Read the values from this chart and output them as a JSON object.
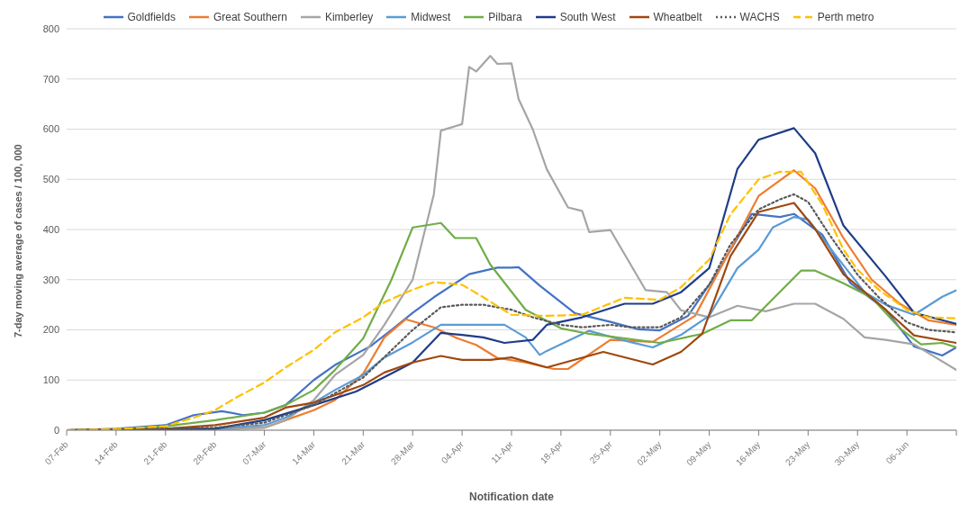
{
  "chart_data": {
    "type": "line",
    "xlabel": "Notification date",
    "ylabel": "7-day moving average of cases / 100, 000",
    "legend": "top",
    "grid": "y",
    "marker": "none",
    "xlim": [
      "--02-07",
      "--06-13"
    ],
    "ylim": [
      0,
      800
    ],
    "yticks": [
      0,
      100,
      200,
      300,
      400,
      500,
      600,
      700,
      800
    ],
    "xticks": [
      {
        "value": "--02-07",
        "label": "07-Feb"
      },
      {
        "value": "--02-14",
        "label": "14-Feb"
      },
      {
        "value": "--02-21",
        "label": "21-Feb"
      },
      {
        "value": "--02-28",
        "label": "28-Feb"
      },
      {
        "value": "--03-07",
        "label": "07-Mar"
      },
      {
        "value": "--03-14",
        "label": "14-Mar"
      },
      {
        "value": "--03-21",
        "label": "21-Mar"
      },
      {
        "value": "--03-28",
        "label": "28-Mar"
      },
      {
        "value": "--04-04",
        "label": "04-Apr"
      },
      {
        "value": "--04-11",
        "label": "11-Apr"
      },
      {
        "value": "--04-18",
        "label": "18-Apr"
      },
      {
        "value": "--04-25",
        "label": "25-Apr"
      },
      {
        "value": "--05-02",
        "label": "02-May"
      },
      {
        "value": "--05-09",
        "label": "09-May"
      },
      {
        "value": "--05-16",
        "label": "16-May"
      },
      {
        "value": "--05-23",
        "label": "23-May"
      },
      {
        "value": "--05-30",
        "label": "30-May"
      },
      {
        "value": "--06-06",
        "label": "06-Jun"
      },
      {
        "value": "--06-13",
        "label": null
      }
    ],
    "series": [
      {
        "name": "Goldfields",
        "color": "#4472c4",
        "line_style": "solid",
        "x": [
          "--02-07",
          "--02-14",
          "--02-21",
          "--02-25",
          "--03-01",
          "--03-04",
          "--03-07",
          "--03-10",
          "--03-14",
          "--03-17",
          "--03-22",
          "--03-25",
          "--03-28",
          "--03-31",
          "--04-05",
          "--04-09",
          "--04-11",
          "--04-12",
          "--04-15",
          "--04-20",
          "--04-25",
          "--04-29",
          "--05-02",
          "--05-06",
          "--05-10",
          "--05-15",
          "--05-19",
          "--05-21",
          "--05-25",
          "--05-29",
          "--06-03",
          "--06-07",
          "--06-11",
          "--06-13"
        ],
        "values": [
          0,
          3,
          10,
          30,
          38,
          30,
          35,
          50,
          100,
          130,
          167,
          200,
          234,
          265,
          311,
          324,
          324,
          325,
          288,
          233,
          216,
          201,
          199,
          228,
          311,
          431,
          425,
          431,
          390,
          293,
          240,
          167,
          149,
          165
        ]
      },
      {
        "name": "Great Southern",
        "color": "#ed7d31",
        "line_style": "solid",
        "x": [
          "--02-07",
          "--02-28",
          "--03-07",
          "--03-10",
          "--03-14",
          "--03-17",
          "--03-21",
          "--03-24",
          "--03-27",
          "--03-31",
          "--04-03",
          "--04-06",
          "--04-09",
          "--04-13",
          "--04-17",
          "--04-19",
          "--04-25",
          "--05-01",
          "--05-07",
          "--05-12",
          "--05-16",
          "--05-21",
          "--05-24",
          "--05-28",
          "--06-01",
          "--06-05",
          "--06-09",
          "--06-13"
        ],
        "values": [
          0,
          3,
          5,
          20,
          40,
          60,
          113,
          185,
          221,
          205,
          185,
          170,
          144,
          135,
          122,
          122,
          180,
          176,
          228,
          360,
          467,
          518,
          482,
          383,
          300,
          252,
          219,
          210
        ]
      },
      {
        "name": "Kimberley",
        "color": "#a5a5a5",
        "line_style": "solid",
        "x": [
          "--02-07",
          "--02-28",
          "--03-07",
          "--03-10",
          "--03-14",
          "--03-17",
          "--03-21",
          "--03-24",
          "--03-28",
          "--03-31",
          "--04-01",
          "--04-04",
          "--04-05",
          "--04-06",
          "--04-08",
          "--04-09",
          "--04-11",
          "--04-12",
          "--04-14",
          "--04-16",
          "--04-19",
          "--04-21",
          "--04-22",
          "--04-25",
          "--04-30",
          "--05-03",
          "--05-05",
          "--05-09",
          "--05-13",
          "--05-17",
          "--05-21",
          "--05-24",
          "--05-28",
          "--05-31",
          "--06-03",
          "--06-07",
          "--06-13"
        ],
        "values": [
          0,
          0,
          5,
          20,
          60,
          110,
          150,
          210,
          300,
          470,
          597,
          610,
          724,
          715,
          746,
          730,
          731,
          660,
          600,
          520,
          444,
          437,
          395,
          399,
          279,
          275,
          239,
          225,
          248,
          237,
          252,
          252,
          222,
          185,
          180,
          171,
          120
        ]
      },
      {
        "name": "Midwest",
        "color": "#5b9bd5",
        "line_style": "solid",
        "x": [
          "--02-07",
          "--02-28",
          "--03-07",
          "--03-10",
          "--03-14",
          "--03-17",
          "--03-21",
          "--03-24",
          "--03-28",
          "--04-01",
          "--04-06",
          "--04-10",
          "--04-13",
          "--04-15",
          "--04-16",
          "--04-22",
          "--04-28",
          "--05-01",
          "--05-05",
          "--05-09",
          "--05-13",
          "--05-16",
          "--05-18",
          "--05-21",
          "--05-23",
          "--05-27",
          "--05-31",
          "--06-03",
          "--06-07",
          "--06-11",
          "--06-13"
        ],
        "values": [
          0,
          3,
          10,
          25,
          55,
          80,
          110,
          145,
          175,
          210,
          210,
          210,
          185,
          150,
          158,
          198,
          175,
          165,
          190,
          228,
          323,
          360,
          404,
          425,
          420,
          347,
          275,
          250,
          230,
          266,
          279
        ]
      },
      {
        "name": "Pilbara",
        "color": "#70ad47",
        "line_style": "solid",
        "x": [
          "--02-07",
          "--02-14",
          "--02-21",
          "--02-28",
          "--03-07",
          "--03-10",
          "--03-14",
          "--03-17",
          "--03-21",
          "--03-25",
          "--03-28",
          "--04-01",
          "--04-03",
          "--04-06",
          "--04-08",
          "--04-13",
          "--04-18",
          "--04-22",
          "--05-02",
          "--05-08",
          "--05-12",
          "--05-15",
          "--05-22",
          "--05-24",
          "--05-28",
          "--06-01",
          "--06-05",
          "--06-08",
          "--06-11",
          "--06-13"
        ],
        "values": [
          0,
          2,
          8,
          20,
          35,
          50,
          80,
          120,
          183,
          300,
          404,
          413,
          383,
          383,
          330,
          240,
          203,
          192,
          174,
          192,
          219,
          219,
          318,
          318,
          293,
          264,
          203,
          171,
          174,
          165
        ]
      },
      {
        "name": "South West",
        "color": "#1f3c88",
        "line_style": "solid",
        "x": [
          "--02-07",
          "--02-28",
          "--03-07",
          "--03-14",
          "--03-20",
          "--03-25",
          "--03-28",
          "--04-01",
          "--04-04",
          "--04-07",
          "--04-10",
          "--04-14",
          "--04-16",
          "--04-21",
          "--04-27",
          "--05-01",
          "--05-05",
          "--05-09",
          "--05-13",
          "--05-16",
          "--05-21",
          "--05-24",
          "--05-28",
          "--06-03",
          "--06-07",
          "--06-13"
        ],
        "values": [
          0,
          3,
          20,
          50,
          77,
          113,
          135,
          194,
          190,
          185,
          174,
          180,
          210,
          225,
          252,
          252,
          275,
          323,
          521,
          579,
          602,
          552,
          408,
          306,
          234,
          212
        ]
      },
      {
        "name": "Wheatbelt",
        "color": "#9e480e",
        "line_style": "solid",
        "x": [
          "--02-07",
          "--02-21",
          "--02-28",
          "--03-07",
          "--03-10",
          "--03-14",
          "--03-17",
          "--03-21",
          "--03-24",
          "--03-28",
          "--04-01",
          "--04-04",
          "--04-08",
          "--04-11",
          "--04-16",
          "--04-24",
          "--05-01",
          "--05-05",
          "--05-08",
          "--05-12",
          "--05-16",
          "--05-21",
          "--05-24",
          "--05-28",
          "--06-03",
          "--06-07",
          "--06-13"
        ],
        "values": [
          0,
          3,
          10,
          25,
          45,
          55,
          70,
          90,
          115,
          135,
          148,
          140,
          140,
          145,
          125,
          156,
          131,
          156,
          192,
          347,
          435,
          453,
          401,
          311,
          240,
          189,
          174
        ]
      },
      {
        "name": "WACHS",
        "color": "#595959",
        "line_style": "dotted",
        "x": [
          "--02-07",
          "--02-28",
          "--03-07",
          "--03-14",
          "--03-21",
          "--03-28",
          "--04-01",
          "--04-04",
          "--04-07",
          "--04-11",
          "--04-14",
          "--04-18",
          "--04-21",
          "--04-25",
          "--04-28",
          "--05-02",
          "--05-05",
          "--05-09",
          "--05-12",
          "--05-16",
          "--05-19",
          "--05-21",
          "--05-23",
          "--05-26",
          "--05-30",
          "--06-02",
          "--06-06",
          "--06-09",
          "--06-13"
        ],
        "values": [
          0,
          5,
          15,
          50,
          105,
          200,
          245,
          250,
          250,
          240,
          225,
          210,
          205,
          210,
          205,
          205,
          225,
          290,
          370,
          440,
          460,
          470,
          455,
          390,
          310,
          265,
          215,
          200,
          195
        ]
      },
      {
        "name": "Perth metro",
        "color": "#ffc000",
        "line_style": "dashed",
        "x": [
          "--02-07",
          "--02-14",
          "--02-21",
          "--02-25",
          "--02-28",
          "--03-03",
          "--03-07",
          "--03-10",
          "--03-14",
          "--03-17",
          "--03-21",
          "--03-24",
          "--03-28",
          "--03-31",
          "--04-04",
          "--04-07",
          "--04-11",
          "--04-16",
          "--04-21",
          "--04-27",
          "--05-02",
          "--05-05",
          "--05-09",
          "--05-12",
          "--05-16",
          "--05-19",
          "--05-22",
          "--05-25",
          "--05-28",
          "--05-30",
          "--06-02",
          "--06-06",
          "--06-09",
          "--06-13"
        ],
        "values": [
          0,
          2,
          8,
          25,
          40,
          65,
          95,
          125,
          160,
          195,
          225,
          255,
          280,
          295,
          290,
          265,
          230,
          228,
          230,
          264,
          260,
          285,
          340,
          430,
          500,
          515,
          515,
          450,
          360,
          320,
          280,
          240,
          225,
          223
        ]
      }
    ]
  }
}
